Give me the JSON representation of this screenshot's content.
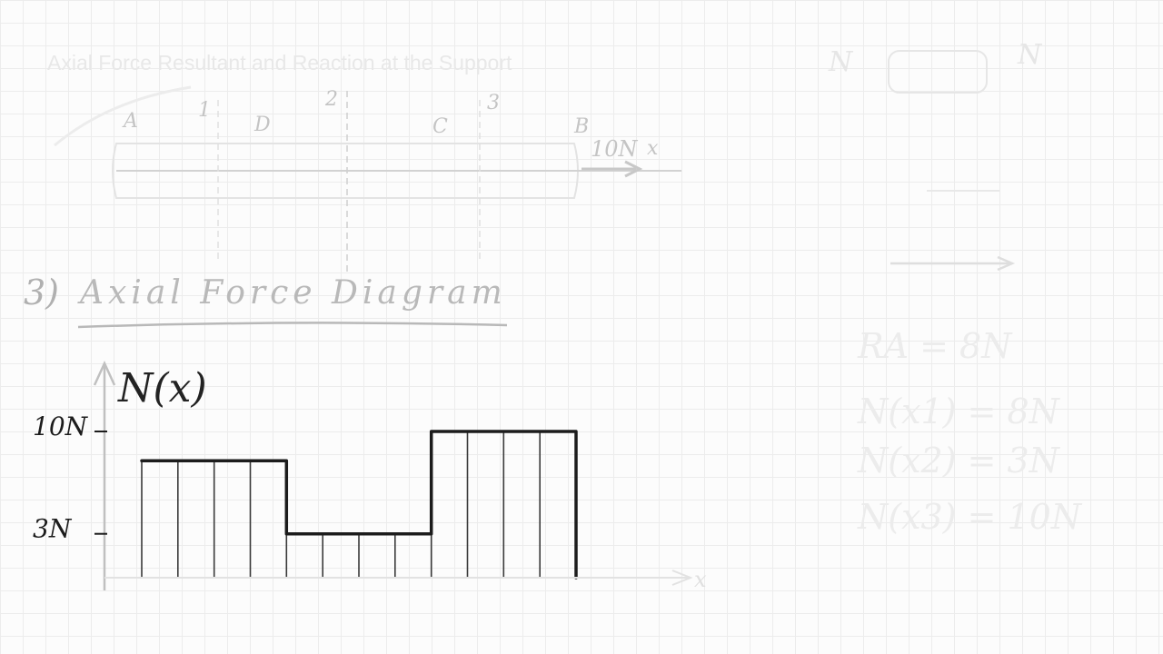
{
  "board": {
    "faded_title": "Axial Force Resultant and Reaction at the Support",
    "section_number": "3)",
    "section_title": "Axial Force Diagram"
  },
  "beam_sketch": {
    "point_labels": [
      "A",
      "D",
      "C",
      "B"
    ],
    "cut_labels": [
      "1",
      "2",
      "3"
    ],
    "load_label": "10N",
    "axis_label": "x"
  },
  "side_notes": {
    "node_labels": [
      "N",
      "N"
    ],
    "lines": [
      "RA = 8N",
      "N(x1) = 8N",
      "N(x2) = 3N",
      "N(x3) = 10N"
    ]
  },
  "chart_data": {
    "type": "bar",
    "title": "",
    "ylabel": "N(x)",
    "xlabel": "x",
    "ytick_labels": [
      "10N",
      "3N"
    ],
    "ytick_values": [
      10,
      3
    ],
    "ylim": [
      0,
      10
    ],
    "series": [
      {
        "segments": [
          {
            "x_start": 0,
            "x_end": 1,
            "value": 8
          },
          {
            "x_start": 1,
            "x_end": 2,
            "value": 3
          },
          {
            "x_start": 2,
            "x_end": 3,
            "value": 10
          }
        ]
      }
    ],
    "colors": {
      "ink": "#1c1c1c",
      "hatch": "#3a3a3a",
      "faded": "#dddddd",
      "grid": "#ececec"
    }
  }
}
